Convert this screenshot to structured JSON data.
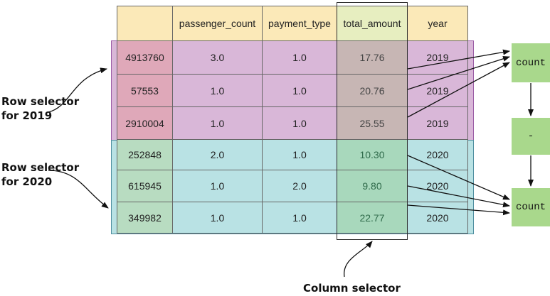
{
  "table": {
    "columns": [
      "",
      "passenger_count",
      "payment_type",
      "total_amount",
      "year"
    ],
    "rows_2019": [
      [
        "4913760",
        "3.0",
        "1.0",
        "17.76",
        "2019"
      ],
      [
        "57553",
        "1.0",
        "1.0",
        "20.76",
        "2019"
      ],
      [
        "2910004",
        "1.0",
        "1.0",
        "25.55",
        "2019"
      ]
    ],
    "rows_2020": [
      [
        "252848",
        "2.0",
        "1.0",
        "10.30",
        "2020"
      ],
      [
        "615945",
        "1.0",
        "2.0",
        "9.80",
        "2020"
      ],
      [
        "349982",
        "1.0",
        "1.0",
        "22.77",
        "2020"
      ]
    ]
  },
  "labels": {
    "row_selector_2019": [
      "Row selector",
      "for 2019"
    ],
    "row_selector_2020": [
      "Row selector",
      "for 2020"
    ],
    "column_selector": "Column selector"
  },
  "ops": {
    "count_top": "count",
    "minus": "-",
    "count_bottom": "count"
  },
  "colors": {
    "header": "#fbe9b8",
    "band_2019": "#d9b7d8",
    "band_2020": "#b9e2e4",
    "op_box": "#a9d88c"
  }
}
